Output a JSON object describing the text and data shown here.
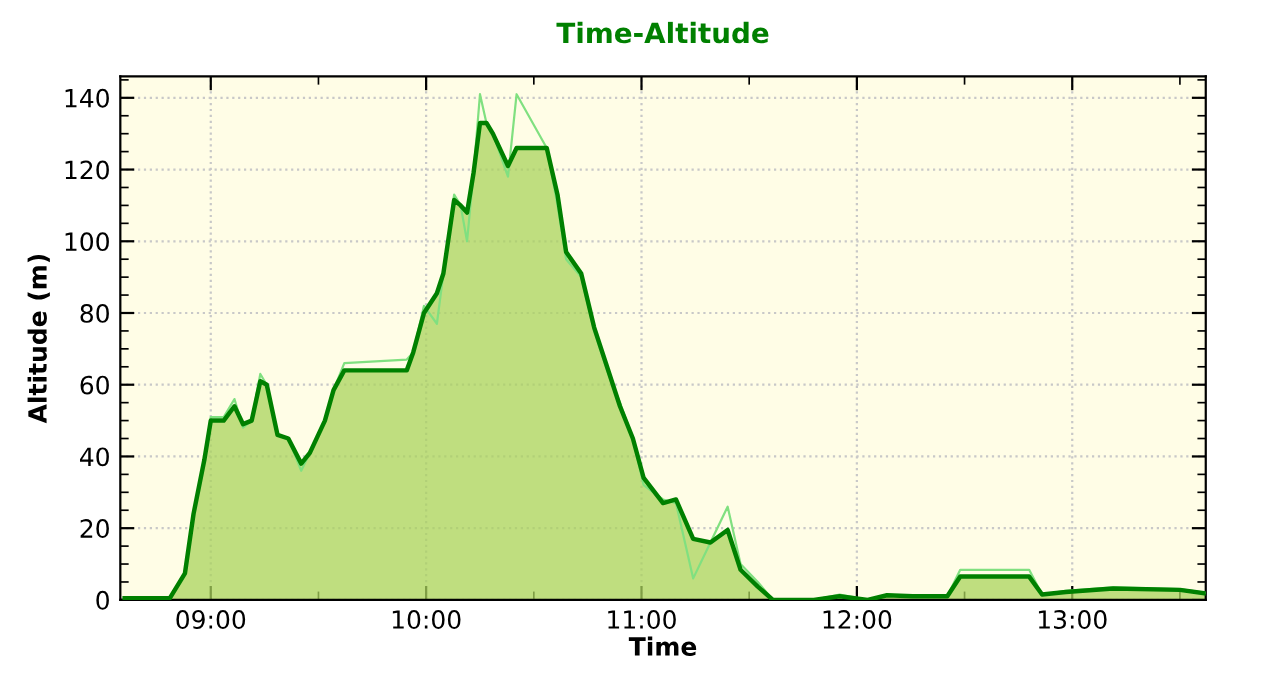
{
  "chart_data": {
    "type": "area",
    "title": "Time-Altitude",
    "xlabel": "Time",
    "ylabel": "Altitude (m)",
    "xlim": [
      8.58,
      13.62
    ],
    "ylim": [
      0,
      146
    ],
    "xticks": [
      {
        "value": 9,
        "label": "09:00"
      },
      {
        "value": 10,
        "label": "10:00"
      },
      {
        "value": 11,
        "label": "11:00"
      },
      {
        "value": 12,
        "label": "12:00"
      },
      {
        "value": 13,
        "label": "13:00"
      }
    ],
    "yticks": [
      0,
      20,
      40,
      60,
      80,
      100,
      120,
      140
    ],
    "grid": true,
    "marker": "none",
    "line_style": "solid",
    "series": [
      {
        "type": "line",
        "color": "#80e080",
        "x": [
          8.6,
          8.81,
          8.88,
          8.92,
          8.97,
          9.0,
          9.06,
          9.11,
          9.15,
          9.19,
          9.23,
          9.26,
          9.31,
          9.36,
          9.42,
          9.46,
          9.53,
          9.57,
          9.62,
          9.91,
          9.94,
          9.99,
          10.05,
          10.08,
          10.13,
          10.16,
          10.19,
          10.22,
          10.25,
          10.28,
          10.31,
          10.38,
          10.42,
          10.56,
          10.61,
          10.65,
          10.72,
          10.78,
          10.84,
          10.9,
          10.96,
          11.01,
          11.1,
          11.16,
          11.24,
          11.32,
          11.4,
          11.46,
          11.54,
          11.61,
          11.8,
          11.92,
          12.05,
          12.14,
          12.26,
          12.42,
          12.48,
          12.8,
          12.86,
          12.97,
          13.19,
          13.5,
          13.62
        ],
        "values": [
          0.5,
          0.5,
          7.4,
          24,
          39,
          51,
          51,
          56,
          48,
          50,
          63,
          60,
          46,
          45,
          36,
          41,
          50,
          58.5,
          66,
          67,
          69,
          82,
          77,
          91,
          113,
          110,
          100,
          119,
          141,
          133,
          130,
          118,
          141,
          126,
          110,
          95,
          90,
          75,
          64,
          55,
          45,
          32,
          28,
          27,
          6,
          16,
          26,
          10,
          5,
          0,
          0,
          1.5,
          0,
          1.5,
          1,
          1,
          8.4,
          8.4,
          1.5,
          2.5,
          3.5,
          3,
          2
        ]
      },
      {
        "color": "#008000",
        "x": [
          8.6,
          8.81,
          8.88,
          8.92,
          8.97,
          9.0,
          9.06,
          9.11,
          9.15,
          9.19,
          9.23,
          9.26,
          9.31,
          9.36,
          9.42,
          9.46,
          9.53,
          9.57,
          9.62,
          9.91,
          9.94,
          9.99,
          10.05,
          10.08,
          10.13,
          10.16,
          10.19,
          10.22,
          10.25,
          10.28,
          10.31,
          10.38,
          10.42,
          10.56,
          10.61,
          10.65,
          10.72,
          10.78,
          10.84,
          10.9,
          10.96,
          11.01,
          11.1,
          11.16,
          11.24,
          11.32,
          11.4,
          11.46,
          11.54,
          11.61,
          11.8,
          11.92,
          12.05,
          12.14,
          12.26,
          12.42,
          12.48,
          12.8,
          12.86,
          12.97,
          13.19,
          13.5,
          13.62
        ],
        "values": [
          0.5,
          0.5,
          7.4,
          24,
          39,
          50,
          50,
          54,
          49,
          50,
          61,
          60,
          46,
          45,
          38,
          41,
          50,
          58.5,
          64,
          64,
          69,
          80,
          85.5,
          91,
          111.5,
          110,
          108,
          119,
          133,
          133,
          130,
          121,
          126,
          126,
          113,
          97,
          91,
          76,
          65,
          54,
          45,
          34,
          27,
          28,
          17,
          16,
          19.5,
          8.4,
          3.7,
          0,
          0,
          1,
          0,
          1.3,
          1,
          1,
          6.5,
          6.5,
          1.5,
          2.2,
          3.2,
          2.8,
          1.8
        ]
      }
    ]
  }
}
